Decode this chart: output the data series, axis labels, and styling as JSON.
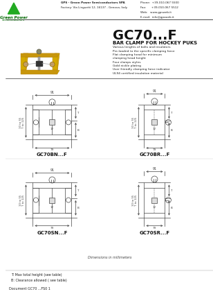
{
  "title": "GC70...F",
  "subtitle": "BAR CLAMP FOR HOCKEY PUKS",
  "features": [
    "Various lenghts of bolts and insulators",
    "Pre-loaded to the specific clamping force",
    "Flat clamping head for minimum",
    "clamping head height",
    "Four clamps styles",
    "Gold nickle plating",
    "User friendly clamping force indicator",
    "UL94 certified insulation material"
  ],
  "company_info": "GPS - Green Power Semiconductors SPA",
  "company_addr": "Factory: Via Linguetti 12, 16137 - Genova, Italy",
  "phone": "Phone:  +39-010-067 5500",
  "fax": "Fax:      +39-010-067 5512",
  "web": "Web:   www.gpsweb.it",
  "email": "E-mail:  info@gpsweb.it",
  "company_name": "Green Power",
  "company_sub": "Semiconductors",
  "doc": "Document GC70 ...FS0 1",
  "footnote_a": "T: Max total height (see table)",
  "footnote_b": "B: Clearance allowed ( see table)",
  "dim_note": "Dimensions in millimeters",
  "variants": [
    "GC70BN...F",
    "GC70BR...F",
    "GC70SN...F",
    "GC70SR...F"
  ],
  "yellow": "#D4AA00",
  "gold": "#C8960C",
  "dark_yellow": "#B8860B",
  "bg": "#FFFFFF",
  "green": "#22AA22",
  "lc": "#555555",
  "text_color": "#111111"
}
